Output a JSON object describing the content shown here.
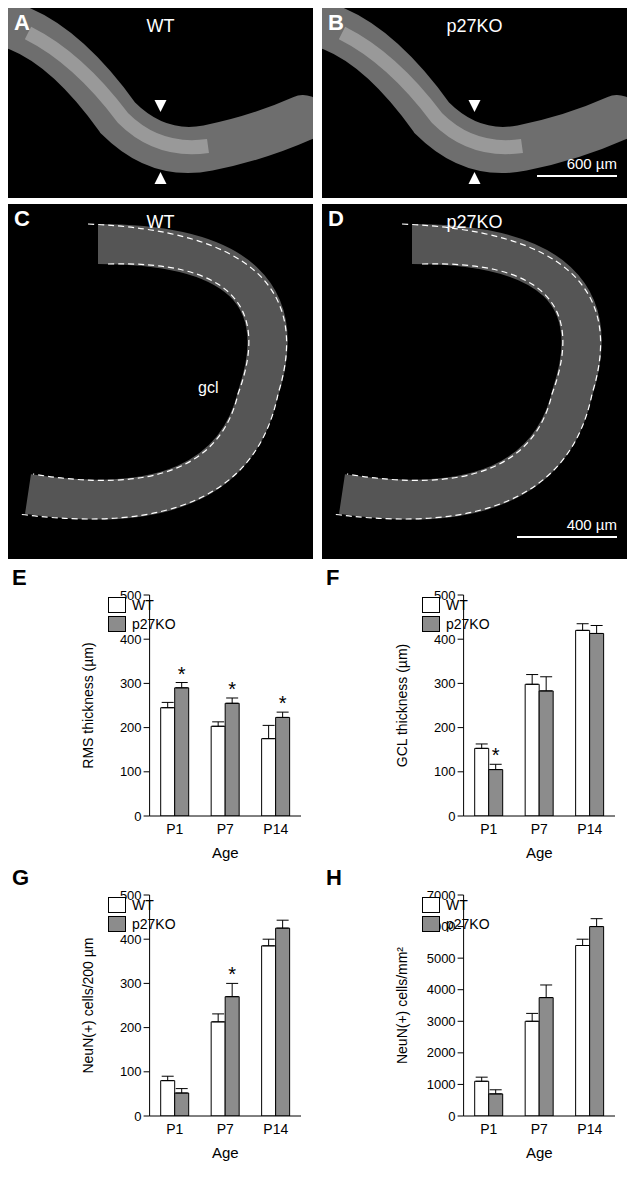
{
  "images": [
    {
      "panel": "A",
      "label": "WT"
    },
    {
      "panel": "B",
      "label": "p27KO",
      "scale_bar": "600 µm"
    },
    {
      "panel": "C",
      "label": "WT",
      "annotation": "gcl"
    },
    {
      "panel": "D",
      "label": "p27KO",
      "scale_bar": "400 µm"
    }
  ],
  "chart_data": [
    {
      "type": "bar",
      "panel": "E",
      "x_label": "Age",
      "y_label": "RMS thickness (µm)",
      "categories": [
        "P1",
        "P7",
        "P14"
      ],
      "series": [
        {
          "name": "WT",
          "color": "#ffffff",
          "values": [
            245,
            203,
            175
          ],
          "errors": [
            12,
            10,
            30
          ]
        },
        {
          "name": "p27KO",
          "color": "#8c8c8c",
          "values": [
            290,
            255,
            223
          ],
          "errors": [
            12,
            12,
            12
          ]
        }
      ],
      "ylim": [
        0,
        500
      ],
      "yticks": [
        0,
        100,
        200,
        300,
        400,
        500
      ],
      "legend": "upper left",
      "annotations": [
        {
          "text": "*",
          "series": "p27KO",
          "category": "P1"
        },
        {
          "text": "*",
          "series": "p27KO",
          "category": "P7"
        },
        {
          "text": "*",
          "series": "p27KO",
          "category": "P14"
        }
      ]
    },
    {
      "type": "bar",
      "panel": "F",
      "x_label": "Age",
      "y_label": "GCL thickness (µm)",
      "categories": [
        "P1",
        "P7",
        "P14"
      ],
      "series": [
        {
          "name": "WT",
          "color": "#ffffff",
          "values": [
            153,
            298,
            420
          ],
          "errors": [
            10,
            22,
            15
          ]
        },
        {
          "name": "p27KO",
          "color": "#8c8c8c",
          "values": [
            105,
            283,
            413
          ],
          "errors": [
            12,
            32,
            18
          ]
        }
      ],
      "ylim": [
        0,
        500
      ],
      "yticks": [
        0,
        100,
        200,
        300,
        400,
        500
      ],
      "legend": "upper left",
      "annotations": [
        {
          "text": "*",
          "series": "p27KO",
          "category": "P1"
        }
      ]
    },
    {
      "type": "bar",
      "panel": "G",
      "x_label": "Age",
      "y_label": "NeuN(+) cells/200 µm",
      "categories": [
        "P1",
        "P7",
        "P14"
      ],
      "series": [
        {
          "name": "WT",
          "color": "#ffffff",
          "values": [
            80,
            213,
            385
          ],
          "errors": [
            10,
            18,
            15
          ]
        },
        {
          "name": "p27KO",
          "color": "#8c8c8c",
          "values": [
            52,
            270,
            425
          ],
          "errors": [
            10,
            30,
            18
          ]
        }
      ],
      "ylim": [
        0,
        500
      ],
      "yticks": [
        0,
        100,
        200,
        300,
        400,
        500
      ],
      "legend": "upper left",
      "annotations": [
        {
          "text": "*",
          "series": "p27KO",
          "category": "P7"
        }
      ]
    },
    {
      "type": "bar",
      "panel": "H",
      "x_label": "Age",
      "y_label": "NeuN(+) cells/mm²",
      "categories": [
        "P1",
        "P7",
        "P14"
      ],
      "series": [
        {
          "name": "WT",
          "color": "#ffffff",
          "values": [
            1100,
            3000,
            5400
          ],
          "errors": [
            130,
            250,
            200
          ]
        },
        {
          "name": "p27KO",
          "color": "#8c8c8c",
          "values": [
            700,
            3750,
            6000
          ],
          "errors": [
            130,
            400,
            250
          ]
        }
      ],
      "ylim": [
        0,
        7000
      ],
      "yticks": [
        0,
        1000,
        2000,
        3000,
        4000,
        5000,
        6000,
        7000
      ],
      "legend": "upper left",
      "annotations": []
    }
  ]
}
